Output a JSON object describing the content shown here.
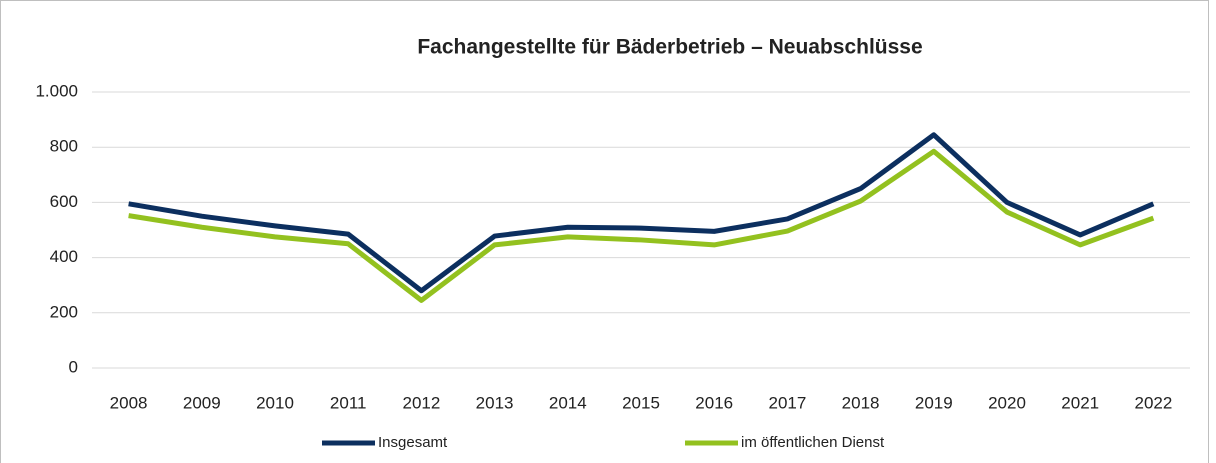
{
  "chart_data": {
    "type": "line",
    "title": "Fachangestellte für Bäderbetrieb – Neuabschlüsse",
    "categories": [
      "2008",
      "2009",
      "2010",
      "2011",
      "2012",
      "2013",
      "2014",
      "2015",
      "2016",
      "2017",
      "2018",
      "2019",
      "2020",
      "2021",
      "2022"
    ],
    "series": [
      {
        "name": "Insgesamt",
        "color": "#0c2f5f",
        "values": [
          595,
          550,
          515,
          485,
          280,
          478,
          510,
          507,
          495,
          540,
          650,
          845,
          600,
          482,
          595
        ]
      },
      {
        "name": "im öffentlichen Dienst",
        "color": "#93c11f",
        "values": [
          552,
          510,
          475,
          450,
          245,
          446,
          475,
          464,
          446,
          496,
          605,
          785,
          565,
          446,
          543
        ]
      }
    ],
    "ylim": [
      0,
      1000
    ],
    "yticks": [
      0,
      200,
      400,
      600,
      800,
      {
        "value": 1000,
        "label": "1.000"
      }
    ],
    "grid": true,
    "legend": "bottom"
  }
}
